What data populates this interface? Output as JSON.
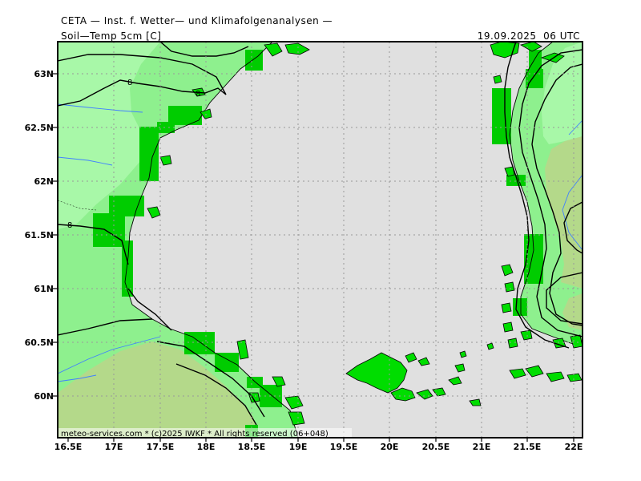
{
  "header": {
    "institute": "CETA — Inst. f. Wetter— und Klimafolgenanalysen —",
    "parameter": "Soil—Temp 5cm [C]",
    "valid_time": "19.09.2025  06 UTC"
  },
  "map": {
    "lat_labels": [
      "63N",
      "62.5N",
      "62N",
      "61.5N",
      "61N",
      "60.5N",
      "60N"
    ],
    "lon_labels": [
      "16.5E",
      "17E",
      "17.5E",
      "18E",
      "18.5E",
      "19E",
      "19.5E",
      "20E",
      "20.5E",
      "21E",
      "21.5E",
      "22E"
    ],
    "credit": "meteo-services.com * (c)2025 IWKF * All rights reserved (06+048)",
    "contour_labels": [
      "8",
      "8",
      "8"
    ],
    "colors": {
      "sea": "#e0e0e0",
      "land_warm": "#8ef08e",
      "land_light": "#a8f8a8",
      "land_olive": "#b4d98a",
      "bright_green": "#00cc00",
      "island_green": "#00dd00",
      "contour": "#000000",
      "river": "#4080ff"
    }
  }
}
